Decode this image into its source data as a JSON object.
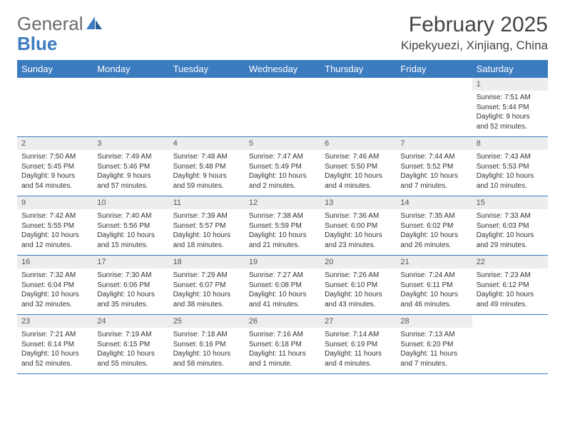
{
  "logo": {
    "text1": "General",
    "text2": "Blue"
  },
  "title": "February 2025",
  "location": "Kipekyuezi, Xinjiang, China",
  "colors": {
    "header_bg": "#3b7bbf",
    "daynum_bg": "#ededed",
    "text": "#333333",
    "title_text": "#444444"
  },
  "days_of_week": [
    "Sunday",
    "Monday",
    "Tuesday",
    "Wednesday",
    "Thursday",
    "Friday",
    "Saturday"
  ],
  "weeks": [
    [
      {
        "n": "",
        "sr": "",
        "ss": "",
        "dl": ""
      },
      {
        "n": "",
        "sr": "",
        "ss": "",
        "dl": ""
      },
      {
        "n": "",
        "sr": "",
        "ss": "",
        "dl": ""
      },
      {
        "n": "",
        "sr": "",
        "ss": "",
        "dl": ""
      },
      {
        "n": "",
        "sr": "",
        "ss": "",
        "dl": ""
      },
      {
        "n": "",
        "sr": "",
        "ss": "",
        "dl": ""
      },
      {
        "n": "1",
        "sr": "Sunrise: 7:51 AM",
        "ss": "Sunset: 5:44 PM",
        "dl": "Daylight: 9 hours and 52 minutes."
      }
    ],
    [
      {
        "n": "2",
        "sr": "Sunrise: 7:50 AM",
        "ss": "Sunset: 5:45 PM",
        "dl": "Daylight: 9 hours and 54 minutes."
      },
      {
        "n": "3",
        "sr": "Sunrise: 7:49 AM",
        "ss": "Sunset: 5:46 PM",
        "dl": "Daylight: 9 hours and 57 minutes."
      },
      {
        "n": "4",
        "sr": "Sunrise: 7:48 AM",
        "ss": "Sunset: 5:48 PM",
        "dl": "Daylight: 9 hours and 59 minutes."
      },
      {
        "n": "5",
        "sr": "Sunrise: 7:47 AM",
        "ss": "Sunset: 5:49 PM",
        "dl": "Daylight: 10 hours and 2 minutes."
      },
      {
        "n": "6",
        "sr": "Sunrise: 7:46 AM",
        "ss": "Sunset: 5:50 PM",
        "dl": "Daylight: 10 hours and 4 minutes."
      },
      {
        "n": "7",
        "sr": "Sunrise: 7:44 AM",
        "ss": "Sunset: 5:52 PM",
        "dl": "Daylight: 10 hours and 7 minutes."
      },
      {
        "n": "8",
        "sr": "Sunrise: 7:43 AM",
        "ss": "Sunset: 5:53 PM",
        "dl": "Daylight: 10 hours and 10 minutes."
      }
    ],
    [
      {
        "n": "9",
        "sr": "Sunrise: 7:42 AM",
        "ss": "Sunset: 5:55 PM",
        "dl": "Daylight: 10 hours and 12 minutes."
      },
      {
        "n": "10",
        "sr": "Sunrise: 7:40 AM",
        "ss": "Sunset: 5:56 PM",
        "dl": "Daylight: 10 hours and 15 minutes."
      },
      {
        "n": "11",
        "sr": "Sunrise: 7:39 AM",
        "ss": "Sunset: 5:57 PM",
        "dl": "Daylight: 10 hours and 18 minutes."
      },
      {
        "n": "12",
        "sr": "Sunrise: 7:38 AM",
        "ss": "Sunset: 5:59 PM",
        "dl": "Daylight: 10 hours and 21 minutes."
      },
      {
        "n": "13",
        "sr": "Sunrise: 7:36 AM",
        "ss": "Sunset: 6:00 PM",
        "dl": "Daylight: 10 hours and 23 minutes."
      },
      {
        "n": "14",
        "sr": "Sunrise: 7:35 AM",
        "ss": "Sunset: 6:02 PM",
        "dl": "Daylight: 10 hours and 26 minutes."
      },
      {
        "n": "15",
        "sr": "Sunrise: 7:33 AM",
        "ss": "Sunset: 6:03 PM",
        "dl": "Daylight: 10 hours and 29 minutes."
      }
    ],
    [
      {
        "n": "16",
        "sr": "Sunrise: 7:32 AM",
        "ss": "Sunset: 6:04 PM",
        "dl": "Daylight: 10 hours and 32 minutes."
      },
      {
        "n": "17",
        "sr": "Sunrise: 7:30 AM",
        "ss": "Sunset: 6:06 PM",
        "dl": "Daylight: 10 hours and 35 minutes."
      },
      {
        "n": "18",
        "sr": "Sunrise: 7:29 AM",
        "ss": "Sunset: 6:07 PM",
        "dl": "Daylight: 10 hours and 38 minutes."
      },
      {
        "n": "19",
        "sr": "Sunrise: 7:27 AM",
        "ss": "Sunset: 6:08 PM",
        "dl": "Daylight: 10 hours and 41 minutes."
      },
      {
        "n": "20",
        "sr": "Sunrise: 7:26 AM",
        "ss": "Sunset: 6:10 PM",
        "dl": "Daylight: 10 hours and 43 minutes."
      },
      {
        "n": "21",
        "sr": "Sunrise: 7:24 AM",
        "ss": "Sunset: 6:11 PM",
        "dl": "Daylight: 10 hours and 46 minutes."
      },
      {
        "n": "22",
        "sr": "Sunrise: 7:23 AM",
        "ss": "Sunset: 6:12 PM",
        "dl": "Daylight: 10 hours and 49 minutes."
      }
    ],
    [
      {
        "n": "23",
        "sr": "Sunrise: 7:21 AM",
        "ss": "Sunset: 6:14 PM",
        "dl": "Daylight: 10 hours and 52 minutes."
      },
      {
        "n": "24",
        "sr": "Sunrise: 7:19 AM",
        "ss": "Sunset: 6:15 PM",
        "dl": "Daylight: 10 hours and 55 minutes."
      },
      {
        "n": "25",
        "sr": "Sunrise: 7:18 AM",
        "ss": "Sunset: 6:16 PM",
        "dl": "Daylight: 10 hours and 58 minutes."
      },
      {
        "n": "26",
        "sr": "Sunrise: 7:16 AM",
        "ss": "Sunset: 6:18 PM",
        "dl": "Daylight: 11 hours and 1 minute."
      },
      {
        "n": "27",
        "sr": "Sunrise: 7:14 AM",
        "ss": "Sunset: 6:19 PM",
        "dl": "Daylight: 11 hours and 4 minutes."
      },
      {
        "n": "28",
        "sr": "Sunrise: 7:13 AM",
        "ss": "Sunset: 6:20 PM",
        "dl": "Daylight: 11 hours and 7 minutes."
      },
      {
        "n": "",
        "sr": "",
        "ss": "",
        "dl": ""
      }
    ]
  ]
}
